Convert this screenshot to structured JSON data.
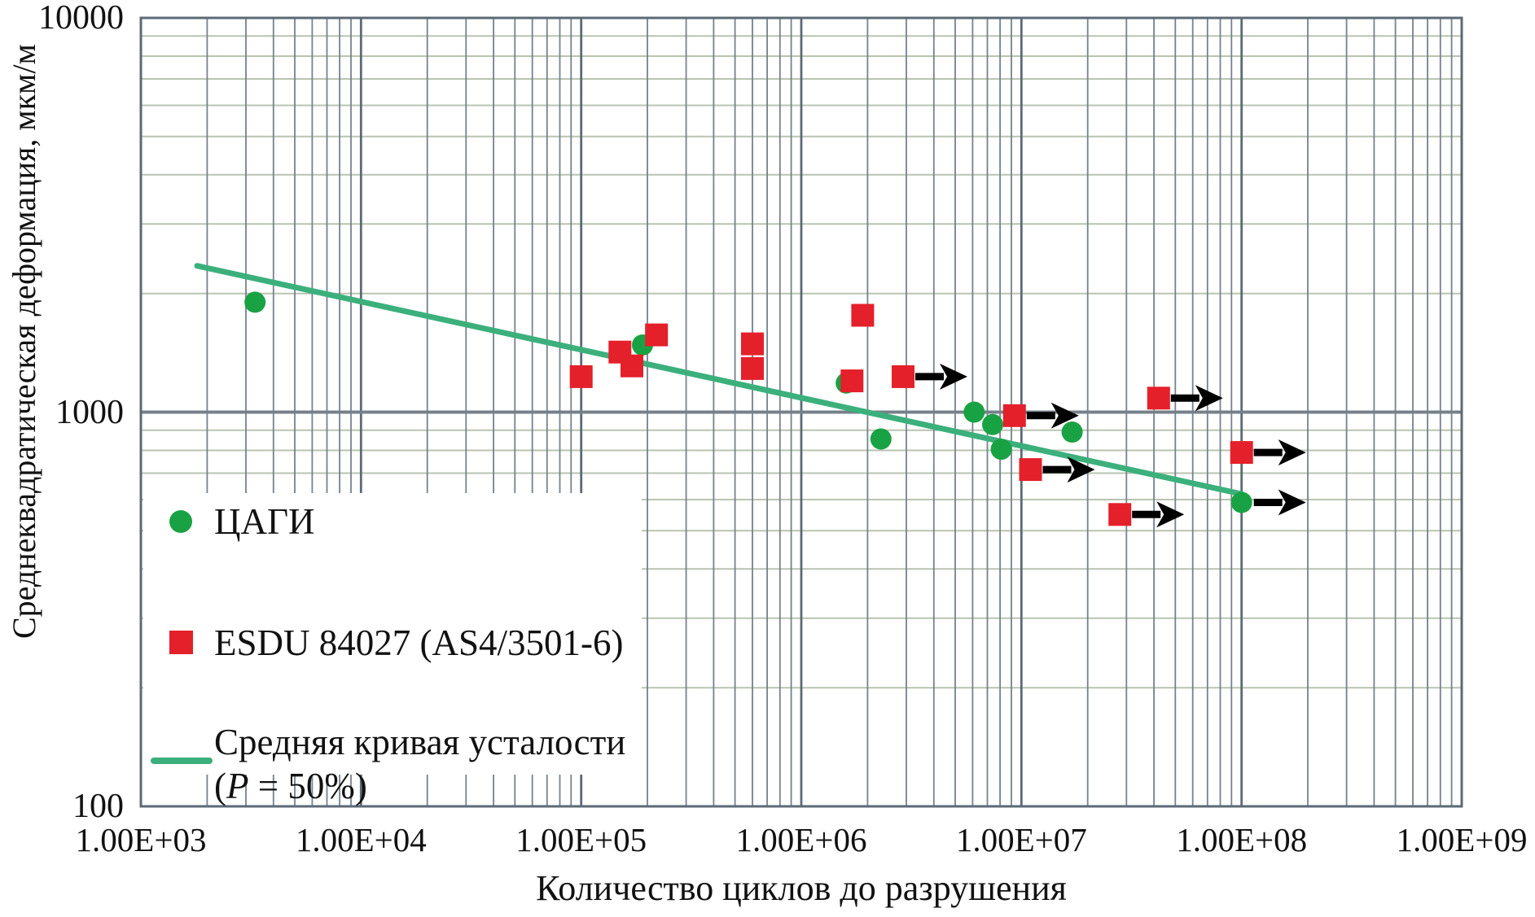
{
  "figure": {
    "background": "#ffffff"
  },
  "colors": {
    "tsagi_green": "#19a244",
    "esdu_red": "#e4202a",
    "curve_green": "#3cb07c",
    "grid_v_major": "#5c6a76",
    "grid_v_minor": "#75828d",
    "grid_h_major": "#75818a",
    "grid_h_minor": "#b9c4b0",
    "border": "#5c6a76",
    "arrow_black": "#000000",
    "text": "#111111"
  },
  "legend": {
    "tsagi_label": "ЦАГИ",
    "esdu_label": "ESDU 84027 (AS4/3501-6)",
    "curve_label_line1": "Средняя кривая усталости",
    "curve_line2_open": "(",
    "curve_line2_p": "P",
    "curve_line2_rest": " = 50%)"
  },
  "chart_data": {
    "type": "scatter",
    "title": "",
    "xlabel": "Количество циклов до разрушения",
    "ylabel": "Среднеквадратическая деформация, мкм/м",
    "x_scale": "log",
    "y_scale": "log",
    "xlim": [
      1000,
      1000000000
    ],
    "ylim": [
      100,
      10000
    ],
    "grid": true,
    "legend_position": "lower left",
    "x_ticks": [
      {
        "value": 1000,
        "label": "1.00E+03"
      },
      {
        "value": 10000,
        "label": "1.00E+04"
      },
      {
        "value": 100000,
        "label": "1.00E+05"
      },
      {
        "value": 1000000,
        "label": "1.00E+06"
      },
      {
        "value": 10000000,
        "label": "1.00E+07"
      },
      {
        "value": 100000000,
        "label": "1.00E+08"
      },
      {
        "value": 1000000000,
        "label": "1.00E+09"
      }
    ],
    "y_ticks": [
      {
        "value": 100,
        "label": "100"
      },
      {
        "value": 1000,
        "label": "1000"
      },
      {
        "value": 10000,
        "label": "10000"
      }
    ],
    "series": [
      {
        "name": "ЦАГИ",
        "type": "scatter",
        "marker": "circle",
        "color_key": "tsagi_green",
        "points": [
          {
            "x": 3300,
            "y": 1900
          },
          {
            "x": 190000,
            "y": 1480
          },
          {
            "x": 1600000,
            "y": 1185
          },
          {
            "x": 2300000,
            "y": 855
          },
          {
            "x": 6100000,
            "y": 1000
          },
          {
            "x": 7400000,
            "y": 930
          },
          {
            "x": 8100000,
            "y": 805
          },
          {
            "x": 17000000,
            "y": 890
          },
          {
            "x": 100000000,
            "y": 590,
            "runout": true
          }
        ]
      },
      {
        "name": "ESDU 84027 (AS4/3501-6)",
        "type": "scatter",
        "marker": "square",
        "color_key": "esdu_red",
        "points": [
          {
            "x": 100000,
            "y": 1230
          },
          {
            "x": 150000,
            "y": 1420
          },
          {
            "x": 170000,
            "y": 1310
          },
          {
            "x": 220000,
            "y": 1570
          },
          {
            "x": 600000,
            "y": 1490
          },
          {
            "x": 600000,
            "y": 1290
          },
          {
            "x": 1700000,
            "y": 1200
          },
          {
            "x": 1900000,
            "y": 1760
          },
          {
            "x": 2900000,
            "y": 1230,
            "runout": true
          },
          {
            "x": 9300000,
            "y": 980,
            "runout": true
          },
          {
            "x": 11000000,
            "y": 715,
            "runout": true
          },
          {
            "x": 28000000,
            "y": 550,
            "runout": true
          },
          {
            "x": 42000000,
            "y": 1085,
            "runout": true
          },
          {
            "x": 100000000,
            "y": 790,
            "runout": true
          }
        ]
      },
      {
        "name": "Средняя кривая усталости (P = 50%)",
        "type": "line",
        "color_key": "curve_green",
        "points": [
          {
            "x": 1800,
            "y": 2350
          },
          {
            "x": 100000000,
            "y": 620
          }
        ]
      }
    ]
  }
}
